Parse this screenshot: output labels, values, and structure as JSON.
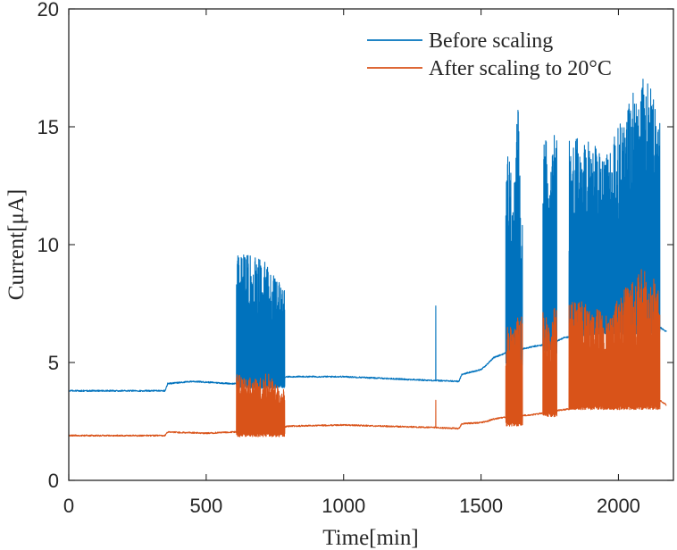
{
  "chart_data": {
    "type": "line",
    "xlabel": "Time[min]",
    "ylabel": "Current[μA]",
    "xlim": [
      0,
      2200
    ],
    "ylim": [
      0,
      20
    ],
    "xticks": [
      0,
      500,
      1000,
      1500,
      2000
    ],
    "yticks": [
      0,
      5,
      10,
      15,
      20
    ],
    "grid": false,
    "legend": "top-right",
    "series": [
      {
        "name": "Before scaling",
        "color": "#0072BD",
        "baseline": [
          [
            0,
            3.8
          ],
          [
            350,
            3.8
          ],
          [
            360,
            4.1
          ],
          [
            450,
            4.2
          ],
          [
            600,
            4.1
          ],
          [
            700,
            4.2
          ],
          [
            800,
            4.4
          ],
          [
            1000,
            4.4
          ],
          [
            1300,
            4.25
          ],
          [
            1420,
            4.2
          ],
          [
            1430,
            4.5
          ],
          [
            1500,
            4.7
          ],
          [
            1520,
            4.9
          ],
          [
            1545,
            5.2
          ],
          [
            1600,
            5.45
          ],
          [
            1700,
            5.7
          ],
          [
            1760,
            5.8
          ],
          [
            1800,
            6.05
          ],
          [
            1900,
            6.2
          ],
          [
            2000,
            6.35
          ],
          [
            2100,
            6.45
          ],
          [
            2150,
            6.5
          ],
          [
            2175,
            6.3
          ]
        ],
        "bursts": [
          {
            "start": 610,
            "end": 785,
            "low": 4.0,
            "high": 9.7,
            "peaks": [
              [
                620,
                9.7
              ],
              [
                650,
                9.6
              ],
              [
                700,
                9.5
              ],
              [
                740,
                8.8
              ],
              [
                760,
                8.5
              ],
              [
                780,
                8.2
              ]
            ]
          },
          {
            "start": 1590,
            "end": 1650,
            "low": 4.9,
            "high": 16.4,
            "peaks": [
              [
                1600,
                13.8
              ],
              [
                1620,
                12.5
              ],
              [
                1635,
                16.4
              ],
              [
                1645,
                11.0
              ]
            ]
          },
          {
            "start": 1725,
            "end": 1775,
            "low": 5.5,
            "high": 15.0,
            "peaks": [
              [
                1735,
                14.7
              ],
              [
                1755,
                13.0
              ],
              [
                1765,
                15.0
              ]
            ]
          },
          {
            "start": 1820,
            "end": 2150,
            "low": 6.3,
            "high": 17.2,
            "peaks": [
              [
                1880,
                14.5
              ],
              [
                1960,
                13.8
              ],
              [
                2050,
                16.6
              ],
              [
                2080,
                17.2
              ],
              [
                2120,
                16.7
              ],
              [
                2145,
                15.3
              ]
            ]
          }
        ],
        "spikes": [
          [
            1335,
            7.4
          ]
        ]
      },
      {
        "name": "After scaling to 20°C",
        "color": "#D95319",
        "baseline": [
          [
            0,
            1.9
          ],
          [
            350,
            1.9
          ],
          [
            360,
            2.05
          ],
          [
            500,
            2.0
          ],
          [
            600,
            2.05
          ],
          [
            700,
            2.1
          ],
          [
            800,
            2.3
          ],
          [
            1000,
            2.35
          ],
          [
            1300,
            2.25
          ],
          [
            1420,
            2.2
          ],
          [
            1430,
            2.4
          ],
          [
            1500,
            2.45
          ],
          [
            1520,
            2.5
          ],
          [
            1545,
            2.6
          ],
          [
            1600,
            2.7
          ],
          [
            1700,
            2.8
          ],
          [
            1760,
            2.95
          ],
          [
            1800,
            3.0
          ],
          [
            1900,
            3.15
          ],
          [
            2000,
            3.3
          ],
          [
            2100,
            3.35
          ],
          [
            2150,
            3.4
          ],
          [
            2175,
            3.2
          ]
        ],
        "bursts": [
          {
            "start": 610,
            "end": 785,
            "low": 1.95,
            "high": 4.6,
            "peaks": [
              [
                620,
                4.5
              ],
              [
                680,
                4.3
              ],
              [
                720,
                4.6
              ],
              [
                770,
                3.9
              ]
            ]
          },
          {
            "start": 1590,
            "end": 1650,
            "low": 2.4,
            "high": 7.2,
            "peaks": [
              [
                1600,
                6.9
              ],
              [
                1620,
                6.3
              ],
              [
                1635,
                7.2
              ]
            ]
          },
          {
            "start": 1725,
            "end": 1775,
            "low": 2.8,
            "high": 7.3,
            "peaks": [
              [
                1735,
                7.2
              ],
              [
                1755,
                6.5
              ],
              [
                1765,
                7.3
              ]
            ]
          },
          {
            "start": 1820,
            "end": 2150,
            "low": 3.1,
            "high": 9.0,
            "peaks": [
              [
                1880,
                7.6
              ],
              [
                1960,
                7.0
              ],
              [
                2050,
                8.6
              ],
              [
                2080,
                9.0
              ],
              [
                2120,
                8.7
              ],
              [
                2145,
                8.2
              ]
            ]
          }
        ],
        "spikes": [
          [
            1335,
            3.4
          ]
        ]
      }
    ]
  }
}
